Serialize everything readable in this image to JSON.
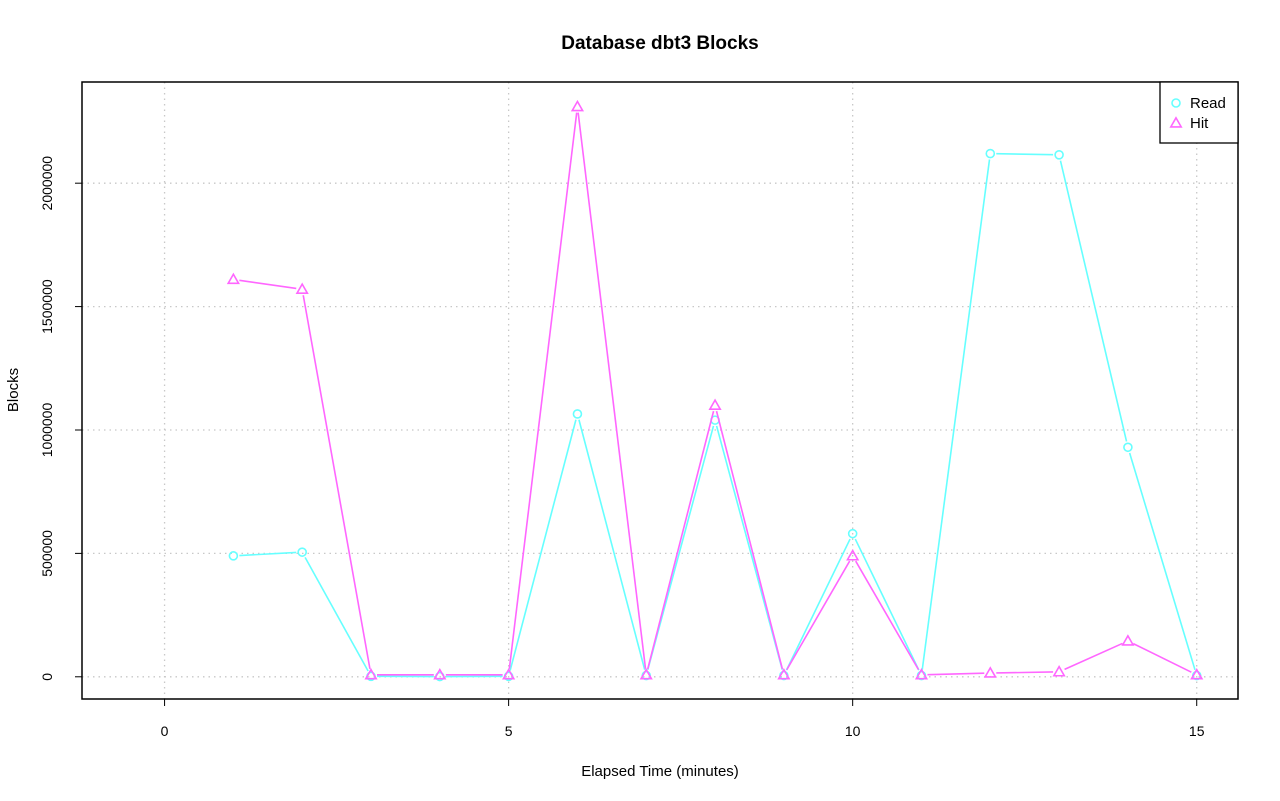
{
  "chart_data": {
    "type": "line",
    "title": "Database dbt3 Blocks",
    "xlabel": "Elapsed Time (minutes)",
    "ylabel": "Blocks",
    "xlim": [
      -1.2,
      15.6
    ],
    "ylim": [
      -90000,
      2410000
    ],
    "x_ticks": [
      0,
      5,
      10,
      15
    ],
    "y_ticks": [
      0,
      500000,
      1000000,
      1500000,
      2000000
    ],
    "x_tick_labels": [
      "0",
      "5",
      "10",
      "15"
    ],
    "y_tick_labels": [
      "0",
      "500000",
      "1000000",
      "1500000",
      "2000000"
    ],
    "grid": true,
    "legend_position": "top-right",
    "x": [
      1,
      2,
      3,
      4,
      5,
      6,
      7,
      8,
      9,
      10,
      11,
      12,
      13,
      14,
      15
    ],
    "series": [
      {
        "name": "Read",
        "color": "#66ffff",
        "marker": "circle",
        "values": [
          490000,
          505000,
          2000,
          1000,
          2000,
          1065000,
          5000,
          1040000,
          5000,
          580000,
          5000,
          2120000,
          2115000,
          930000,
          5000
        ]
      },
      {
        "name": "Hit",
        "color": "#ff66ff",
        "marker": "triangle",
        "values": [
          1610000,
          1570000,
          8000,
          8000,
          8000,
          2310000,
          8000,
          1100000,
          8000,
          490000,
          8000,
          15000,
          20000,
          145000,
          8000
        ]
      }
    ]
  }
}
